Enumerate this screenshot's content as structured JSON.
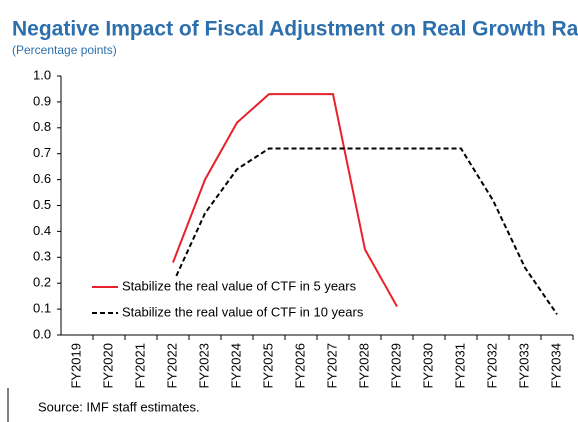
{
  "chart_data": {
    "type": "line",
    "title": "Negative Impact of Fiscal Adjustment on Real Growth Rate",
    "subtitle": "(Percentage points)",
    "source": "Source: IMF staff estimates.",
    "categories": [
      "FY2019",
      "FY2020",
      "FY2021",
      "FY2022",
      "FY2023",
      "FY2024",
      "FY2025",
      "FY2026",
      "FY2027",
      "FY2028",
      "FY2029",
      "FY2030",
      "FY2031",
      "FY2032",
      "FY2033",
      "FY2034"
    ],
    "series": [
      {
        "name": "Stabilize the real value of CTF in 5 years",
        "color": "#e8212b",
        "dash": "solid",
        "values": [
          null,
          null,
          null,
          0.28,
          0.6,
          0.82,
          0.93,
          0.93,
          0.93,
          0.33,
          0.11,
          null,
          null,
          null,
          null,
          null
        ]
      },
      {
        "name": "Stabilize the real value of CTF in 10 years",
        "color": "#000000",
        "dash": "dashed",
        "values": [
          null,
          null,
          null,
          0.2,
          0.47,
          0.64,
          0.72,
          0.72,
          0.72,
          0.72,
          0.72,
          0.72,
          0.72,
          0.52,
          0.26,
          0.08
        ]
      }
    ],
    "ylim": [
      0,
      1
    ],
    "yticks": [
      {
        "value": 0,
        "label": "0.0"
      },
      0.1,
      0.2,
      0.3,
      0.4,
      0.5,
      0.6,
      0.7,
      0.8,
      0.9,
      {
        "value": 1,
        "label": "1.0"
      }
    ],
    "grid": false,
    "legend": "lower-left"
  }
}
